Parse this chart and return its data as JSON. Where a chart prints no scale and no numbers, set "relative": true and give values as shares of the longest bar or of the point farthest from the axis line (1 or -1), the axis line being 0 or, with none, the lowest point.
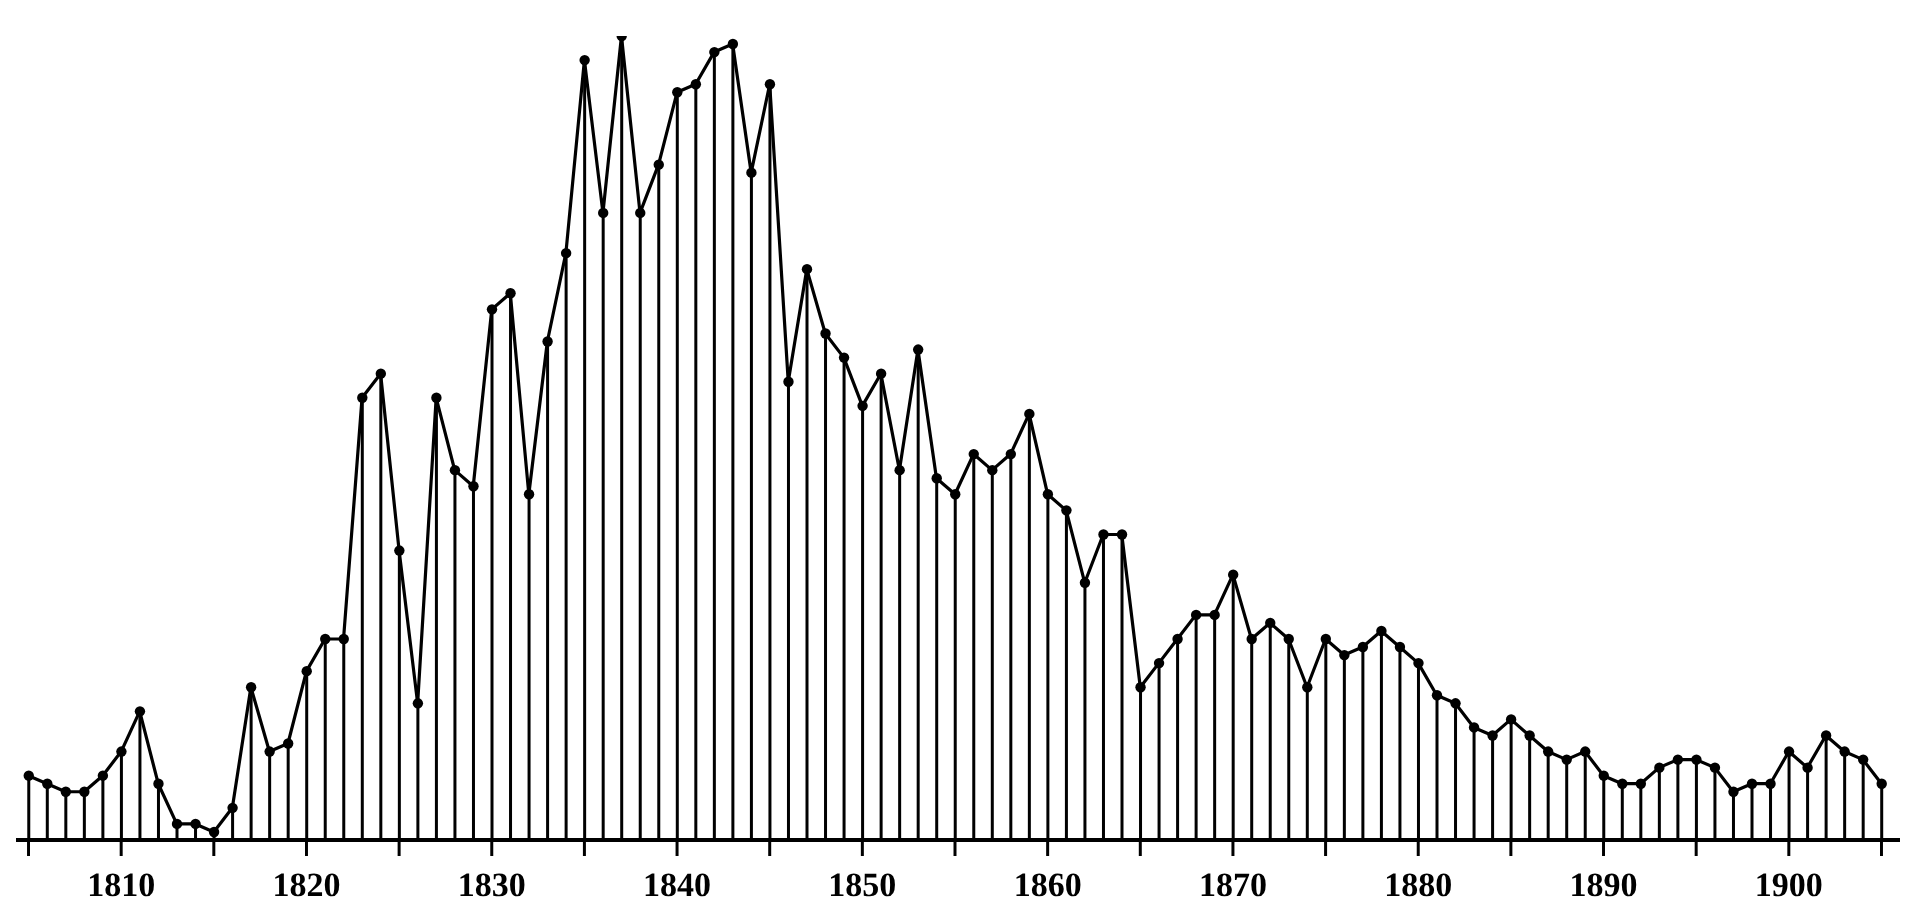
{
  "chart_data": {
    "type": "lollipop",
    "relative": true,
    "marker": "circle",
    "series": [
      {
        "color": "#000000",
        "values": [
          0.08,
          0.07,
          0.06,
          0.06,
          0.08,
          0.11,
          0.16,
          0.07,
          0.02,
          0.02,
          0.01,
          0.04,
          0.19,
          0.11,
          0.12,
          0.21,
          0.25,
          0.25,
          0.55,
          0.58,
          0.36,
          0.17,
          0.55,
          0.46,
          0.44,
          0.66,
          0.68,
          0.43,
          0.62,
          0.73,
          0.97,
          0.78,
          1,
          0.78,
          0.84,
          0.93,
          0.94,
          0.98,
          0.99,
          0.83,
          0.94,
          0.57,
          0.71,
          0.63,
          0.6,
          0.54,
          0.58,
          0.46,
          0.61,
          0.45,
          0.43,
          0.48,
          0.46,
          0.48,
          0.53,
          0.43,
          0.41,
          0.32,
          0.38,
          0.38,
          0.19,
          0.22,
          0.25,
          0.28,
          0.28,
          0.33,
          0.25,
          0.27,
          0.25,
          0.19,
          0.25,
          0.23,
          0.24,
          0.26,
          0.24,
          0.22,
          0.18,
          0.17,
          0.14,
          0.13,
          0.15,
          0.13,
          0.11,
          0.1,
          0.11,
          0.08,
          0.07,
          0.07,
          0.09,
          0.1,
          0.1,
          0.09,
          0.06,
          0.07,
          0.07,
          0.11,
          0.09,
          0.13,
          0.11,
          0.1,
          0.07
        ]
      },
      {
        "type": "line",
        "marker": "none",
        "color": "#000000",
        "values": [
          0.08,
          0.07,
          0.06,
          0.06,
          0.08,
          0.11,
          0.16,
          0.07,
          0.02,
          0.02,
          0.01,
          0.04,
          0.19,
          0.11,
          0.12,
          0.21,
          0.25,
          0.25,
          0.55,
          0.58,
          0.36,
          0.17,
          0.55,
          0.46,
          0.44,
          0.66,
          0.68,
          0.43,
          0.62,
          0.73,
          0.97,
          0.78,
          1,
          0.78,
          0.84,
          0.93,
          0.94,
          0.98,
          0.99,
          0.83,
          0.94,
          0.57,
          0.71,
          0.63,
          0.6,
          0.54,
          0.58,
          0.46,
          0.61,
          0.45,
          0.43,
          0.48,
          0.46,
          0.48,
          0.53,
          0.43,
          0.41,
          0.32,
          0.38,
          0.38,
          0.19,
          0.22,
          0.25,
          0.28,
          0.28,
          0.33,
          0.25,
          0.27,
          0.25,
          0.19,
          0.25,
          0.23,
          0.24,
          0.26,
          0.24,
          0.22,
          0.18,
          0.17,
          0.14,
          0.13,
          0.15,
          0.13,
          0.11,
          0.1,
          0.11,
          0.08,
          0.07,
          0.07,
          0.09,
          0.1,
          0.1,
          0.09,
          0.06,
          0.07,
          0.07,
          0.11,
          0.09,
          0.13,
          0.11,
          0.1,
          0.07
        ]
      }
    ],
    "x": [
      1805,
      1806,
      1807,
      1808,
      1809,
      1810,
      1811,
      1812,
      1813,
      1814,
      1815,
      1816,
      1817,
      1818,
      1819,
      1820,
      1821,
      1822,
      1823,
      1824,
      1825,
      1826,
      1827,
      1828,
      1829,
      1830,
      1831,
      1832,
      1833,
      1834,
      1835,
      1836,
      1837,
      1838,
      1839,
      1840,
      1841,
      1842,
      1843,
      1844,
      1845,
      1846,
      1847,
      1848,
      1849,
      1850,
      1851,
      1852,
      1853,
      1854,
      1855,
      1856,
      1857,
      1858,
      1859,
      1860,
      1861,
      1862,
      1863,
      1864,
      1865,
      1866,
      1867,
      1868,
      1869,
      1870,
      1871,
      1872,
      1873,
      1874,
      1875,
      1876,
      1877,
      1878,
      1879,
      1880,
      1881,
      1882,
      1883,
      1884,
      1885,
      1886,
      1887,
      1888,
      1889,
      1890,
      1891,
      1892,
      1893,
      1894,
      1895,
      1896,
      1897,
      1898,
      1899,
      1900,
      1901,
      1902,
      1903,
      1904,
      1905
    ],
    "xlim": [
      1804,
      1906
    ],
    "xticks": [
      {
        "value": 1805,
        "label": null
      },
      1810,
      {
        "value": 1815,
        "label": null
      },
      1820,
      {
        "value": 1825,
        "label": null
      },
      1830,
      {
        "value": 1835,
        "label": null
      },
      1840,
      {
        "value": 1845,
        "label": null
      },
      1850,
      {
        "value": 1855,
        "label": null
      },
      1860,
      {
        "value": 1865,
        "label": null
      },
      1870,
      {
        "value": 1875,
        "label": null
      },
      1880,
      {
        "value": 1885,
        "label": null
      },
      1890,
      {
        "value": 1895,
        "label": null
      },
      1900,
      {
        "value": 1905,
        "label": null
      }
    ],
    "grid": false,
    "legend": false
  }
}
